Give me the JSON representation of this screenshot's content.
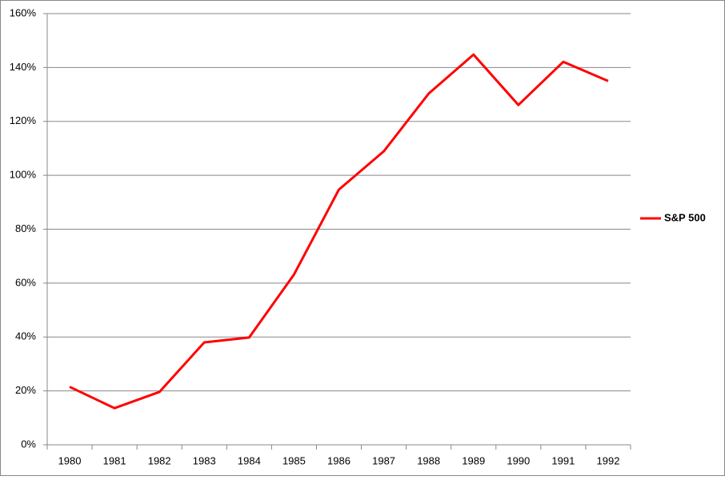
{
  "chart_data": {
    "type": "line",
    "categories": [
      "1980",
      "1981",
      "1982",
      "1983",
      "1984",
      "1985",
      "1986",
      "1987",
      "1988",
      "1989",
      "1990",
      "1991",
      "1992"
    ],
    "series": [
      {
        "name": "S&P 500",
        "color": "#ff0000",
        "values": [
          21.5,
          13.6,
          19.6,
          38,
          39.8,
          63.2,
          94.7,
          108.9,
          130.3,
          144.8,
          126.1,
          142.1,
          135
        ]
      }
    ],
    "ylim": [
      0,
      160
    ],
    "yticks": [
      {
        "value": 0,
        "label": "0%"
      },
      {
        "value": 20,
        "label": "20%"
      },
      {
        "value": 40,
        "label": "40%"
      },
      {
        "value": 60,
        "label": "60%"
      },
      {
        "value": 80,
        "label": "80%"
      },
      {
        "value": 100,
        "label": "100%"
      },
      {
        "value": 120,
        "label": "120%"
      },
      {
        "value": 140,
        "label": "140%"
      },
      {
        "value": 160,
        "label": "160%"
      }
    ],
    "grid": true,
    "legend": "right"
  }
}
